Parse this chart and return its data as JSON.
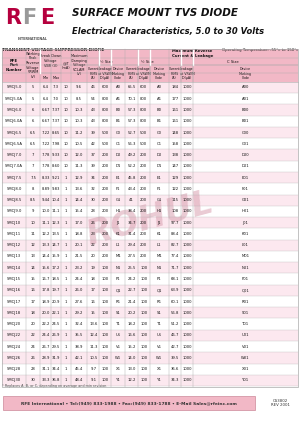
{
  "title1": "SURFACE MOUNT TVS DIODE",
  "title2": "Electrical Characteristics, 5.0 to 30 Volts",
  "footer_text": "RFE International • Tel:(949) 833-1988 • Fax:(949) 833-1788 • E-Mail Sales@rfeinc.com",
  "footer_code": "CS3802\nREV 2001",
  "table_title": "TRANSIENT VOLTAGE SUPPRESSOR DIODE",
  "temp_range": "Operating Temperature: -55°c to 150°c",
  "rows": [
    [
      "SMCJ5.0",
      "5",
      "6.4",
      "7.3",
      "10",
      "9.6",
      "46",
      "600",
      "A0",
      "65.5",
      "600",
      "A0",
      "184",
      "1000",
      "A00"
    ],
    [
      "SMCJ5.0A",
      "5",
      "6.4",
      "7.0",
      "10",
      "8.5",
      "54",
      "800",
      "A1",
      "70.1",
      "800",
      "A1",
      "177",
      "1000",
      "A01"
    ],
    [
      "SMCJ6.0",
      "6",
      "6.67",
      "7.37",
      "10",
      "10.3",
      "43",
      "800",
      "B0",
      "57.3",
      "800",
      "B0",
      "161",
      "1000",
      "B00"
    ],
    [
      "SMCJ6.0A",
      "6",
      "6.67",
      "7.37",
      "10",
      "10.3",
      "43",
      "800",
      "B1",
      "57.3",
      "800",
      "B1",
      "161",
      "1000",
      "B01"
    ],
    [
      "SMCJ6.5",
      "6.5",
      "7.22",
      "8.65",
      "10",
      "11.2",
      "39",
      "500",
      "C0",
      "52.7",
      "500",
      "C0",
      "148",
      "1000",
      "C00"
    ],
    [
      "SMCJ6.5A",
      "6.5",
      "7.22",
      "7.98",
      "10",
      "10.5",
      "42",
      "500",
      "C1",
      "56.3",
      "500",
      "C1",
      "158",
      "1000",
      "C01"
    ],
    [
      "SMCJ7.0",
      "7",
      "7.78",
      "9.33",
      "10",
      "12.0",
      "37",
      "200",
      "D0",
      "49.2",
      "200",
      "D0",
      "138",
      "1000",
      "D00"
    ],
    [
      "SMCJ7.0A",
      "7",
      "7.78",
      "8.60",
      "10",
      "11.3",
      "39",
      "200",
      "D1",
      "52.2",
      "200",
      "D1",
      "147",
      "1000",
      "D01"
    ],
    [
      "SMCJ7.5",
      "7.5",
      "8.33",
      "9.21",
      "1",
      "12.9",
      "34",
      "200",
      "E1",
      "45.8",
      "200",
      "E1",
      "129",
      "1000",
      "E01"
    ],
    [
      "SMCJ8.0",
      "8",
      "8.89",
      "9.83",
      "1",
      "13.6",
      "32",
      "200",
      "F1",
      "43.4",
      "200",
      "F1",
      "122",
      "1000",
      "F01"
    ],
    [
      "SMCJ8.5",
      "8.5",
      "9.44",
      "10.4",
      "1",
      "14.4",
      "30",
      "200",
      "G1",
      "41",
      "200",
      "G1",
      "115",
      "1000",
      "G01"
    ],
    [
      "SMCJ9.0",
      "9",
      "10.0",
      "11.1",
      "1",
      "15.4",
      "28",
      "200",
      "H1",
      "38.4",
      "200",
      "H1",
      "108",
      "1000",
      "H01"
    ],
    [
      "SMCJ10",
      "10",
      "11.1",
      "12.3",
      "1",
      "17.0",
      "26",
      "200",
      "J1",
      "34.7",
      "200",
      "J1",
      "97.7",
      "1000",
      "J01"
    ],
    [
      "SMCJ11",
      "11",
      "12.2",
      "13.5",
      "1",
      "18.8",
      "23",
      "200",
      "K1",
      "31.4",
      "200",
      "K1",
      "88.4",
      "1000",
      "K01"
    ],
    [
      "SMCJ12",
      "12",
      "13.3",
      "14.7",
      "1",
      "20.1",
      "22",
      "200",
      "L1",
      "29.4",
      "200",
      "L1",
      "82.7",
      "1000",
      "L01"
    ],
    [
      "SMCJ13",
      "13",
      "14.4",
      "15.9",
      "1",
      "21.5",
      "20",
      "200",
      "M1",
      "27.5",
      "200",
      "M1",
      "77.4",
      "1000",
      "M01"
    ],
    [
      "SMCJ14",
      "14",
      "15.6",
      "17.2",
      "1",
      "23.2",
      "19",
      "100",
      "N1",
      "25.5",
      "100",
      "N1",
      "71.7",
      "1000",
      "N01"
    ],
    [
      "SMCJ15",
      "15",
      "16.7",
      "18.5",
      "1",
      "24.4",
      "18",
      "100",
      "P1",
      "24.2",
      "100",
      "P1",
      "68.1",
      "1000",
      "P01"
    ],
    [
      "SMCJ16",
      "16",
      "17.8",
      "19.7",
      "1",
      "26.0",
      "17",
      "100",
      "Q1",
      "22.7",
      "100",
      "Q1",
      "63.9",
      "1000",
      "Q01"
    ],
    [
      "SMCJ17",
      "17",
      "18.9",
      "20.9",
      "1",
      "27.6",
      "16",
      "100",
      "R1",
      "21.4",
      "100",
      "R1",
      "60.1",
      "1000",
      "R01"
    ],
    [
      "SMCJ18",
      "18",
      "20.0",
      "22.1",
      "1",
      "29.2",
      "15",
      "100",
      "S1",
      "20.2",
      "100",
      "S1",
      "56.8",
      "1000",
      "S01"
    ],
    [
      "SMCJ20",
      "20",
      "22.2",
      "24.5",
      "1",
      "32.4",
      "13.6",
      "100",
      "T1",
      "18.2",
      "100",
      "T1",
      "51.2",
      "1000",
      "T01"
    ],
    [
      "SMCJ22",
      "22",
      "24.4",
      "26.9",
      "1",
      "35.5",
      "12.4",
      "100",
      "U1",
      "16.6",
      "100",
      "U1",
      "46.7",
      "1000",
      "U01"
    ],
    [
      "SMCJ24",
      "24",
      "26.7",
      "29.5",
      "1",
      "38.9",
      "11.3",
      "100",
      "V1",
      "15.2",
      "100",
      "V1",
      "42.7",
      "1000",
      "V01"
    ],
    [
      "SMCJ26",
      "26",
      "28.9",
      "31.9",
      "1",
      "42.1",
      "10.5",
      "100",
      "W1",
      "14.0",
      "100",
      "W1",
      "39.5",
      "1000",
      "W01"
    ],
    [
      "SMCJ28",
      "28",
      "31.1",
      "34.4",
      "1",
      "45.4",
      "9.7",
      "100",
      "X1",
      "13.0",
      "100",
      "X1",
      "36.6",
      "1000",
      "X01"
    ],
    [
      "SMCJ30",
      "30",
      "33.3",
      "36.8",
      "1",
      "48.4",
      "9.1",
      "100",
      "Y1",
      "12.2",
      "100",
      "Y1",
      "34.3",
      "1000",
      "Y01"
    ]
  ],
  "watermark": "ROHUL",
  "bg_color": "#ffffff",
  "pink": "#f2b8c6",
  "pink_light": "#fce8ef",
  "dark_pink": "#b5003e",
  "gray_rfe": "#999999",
  "border_color": "#aaaaaa",
  "text_color": "#222222",
  "footer_note": "* Replaces A, B, or C, depending on average and min revision"
}
